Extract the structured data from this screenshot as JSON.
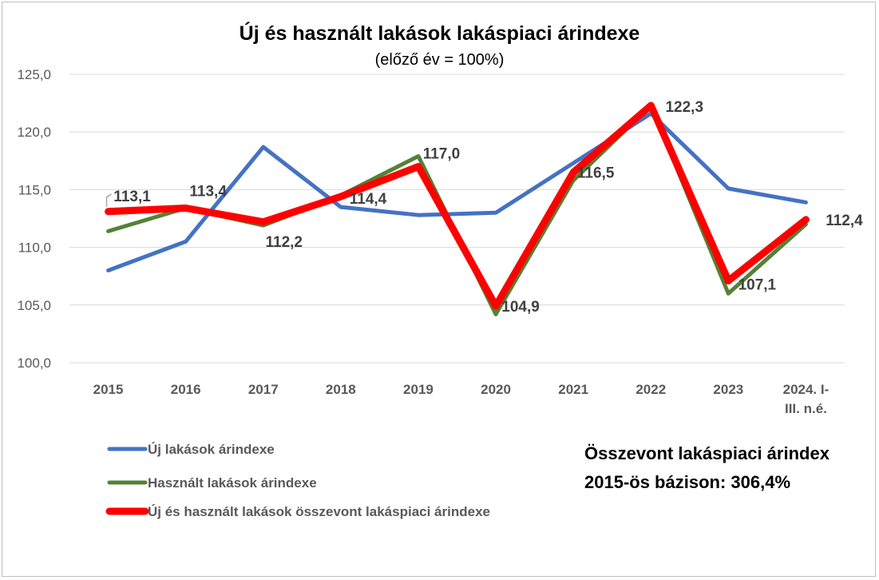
{
  "chart_data": {
    "type": "line",
    "title": "Új és használt lakások lakáspiaci árindexe",
    "subtitle": "(előző év = 100%)",
    "categories": [
      "2015",
      "2016",
      "2017",
      "2018",
      "2019",
      "2020",
      "2021",
      "2022",
      "2023",
      "2024. I-III. n.é."
    ],
    "category_lines": [
      [
        "2015"
      ],
      [
        "2016"
      ],
      [
        "2017"
      ],
      [
        "2018"
      ],
      [
        "2019"
      ],
      [
        "2020"
      ],
      [
        "2021"
      ],
      [
        "2022"
      ],
      [
        "2023"
      ],
      [
        "2024. I-",
        "III. n.é."
      ]
    ],
    "ylim": [
      100,
      125
    ],
    "yticks": [
      "100,0",
      "105,0",
      "110,0",
      "115,0",
      "120,0",
      "125,0"
    ],
    "ytick_values": [
      100,
      105,
      110,
      115,
      120,
      125
    ],
    "grid": true,
    "series": [
      {
        "name": "Új lakások árindexe",
        "color": "#4472c4",
        "values": [
          108.0,
          110.5,
          118.7,
          113.5,
          112.8,
          113.0,
          117.3,
          121.6,
          115.1,
          113.9
        ]
      },
      {
        "name": "Használt lakások árindexe",
        "color": "#548235",
        "values": [
          111.4,
          113.4,
          111.9,
          114.5,
          117.9,
          104.2,
          115.8,
          122.3,
          106.0,
          112.0
        ]
      },
      {
        "name": "Új és használt lakások összevont lakáspiaci árindexe",
        "color": "#ff0000",
        "values": [
          113.1,
          113.4,
          112.2,
          114.4,
          117.0,
          104.9,
          116.5,
          122.3,
          107.1,
          112.4
        ],
        "labels": [
          "113,1",
          "113,4",
          "112,2",
          "114,4",
          "117,0",
          "104,9",
          "116,5",
          "122,3",
          "107,1",
          "112,4"
        ]
      }
    ],
    "annotation": [
      "Összevont lakáspiaci árindex",
      "2015-ös bázison: 306,4%"
    ]
  }
}
